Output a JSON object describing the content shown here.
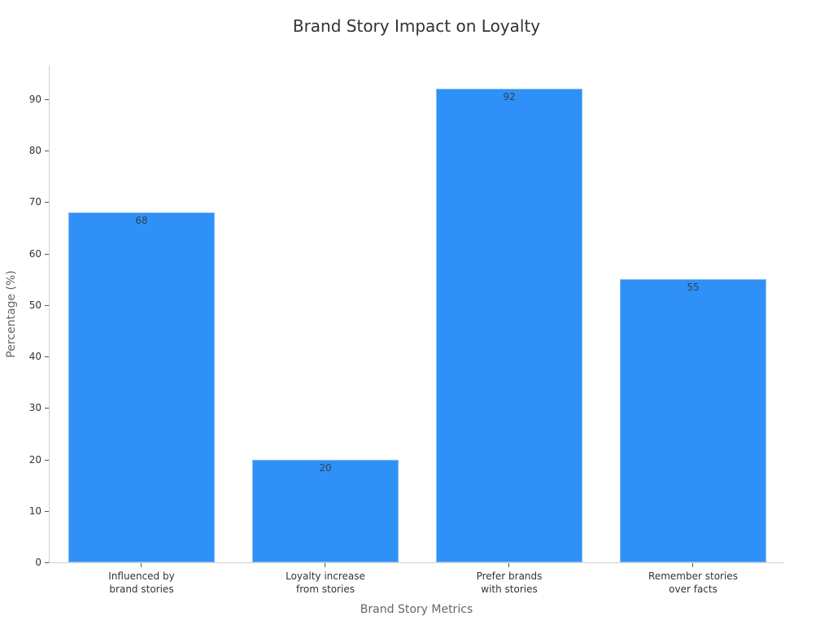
{
  "chart_data": {
    "type": "bar",
    "title": "Brand Story Impact on Loyalty",
    "xlabel": "Brand Story Metrics",
    "ylabel": "Percentage (%)",
    "categories": [
      "Influenced by\nbrand stories",
      "Loyalty increase\nfrom stories",
      "Prefer brands\nwith stories",
      "Remember stories\nover facts"
    ],
    "category_lines": [
      [
        "Influenced by",
        "brand stories"
      ],
      [
        "Loyalty increase",
        "from stories"
      ],
      [
        "Prefer brands",
        "with stories"
      ],
      [
        "Remember stories",
        "over facts"
      ]
    ],
    "values": [
      68,
      20,
      92,
      55
    ],
    "value_labels": [
      "68",
      "20",
      "92",
      "55"
    ],
    "yticks": [
      "0",
      "10",
      "20",
      "30",
      "40",
      "50",
      "60",
      "70",
      "80",
      "90"
    ],
    "ylim": [
      0,
      96.6
    ],
    "grid": false,
    "legend": null,
    "bar_color": "#2f91f7"
  }
}
